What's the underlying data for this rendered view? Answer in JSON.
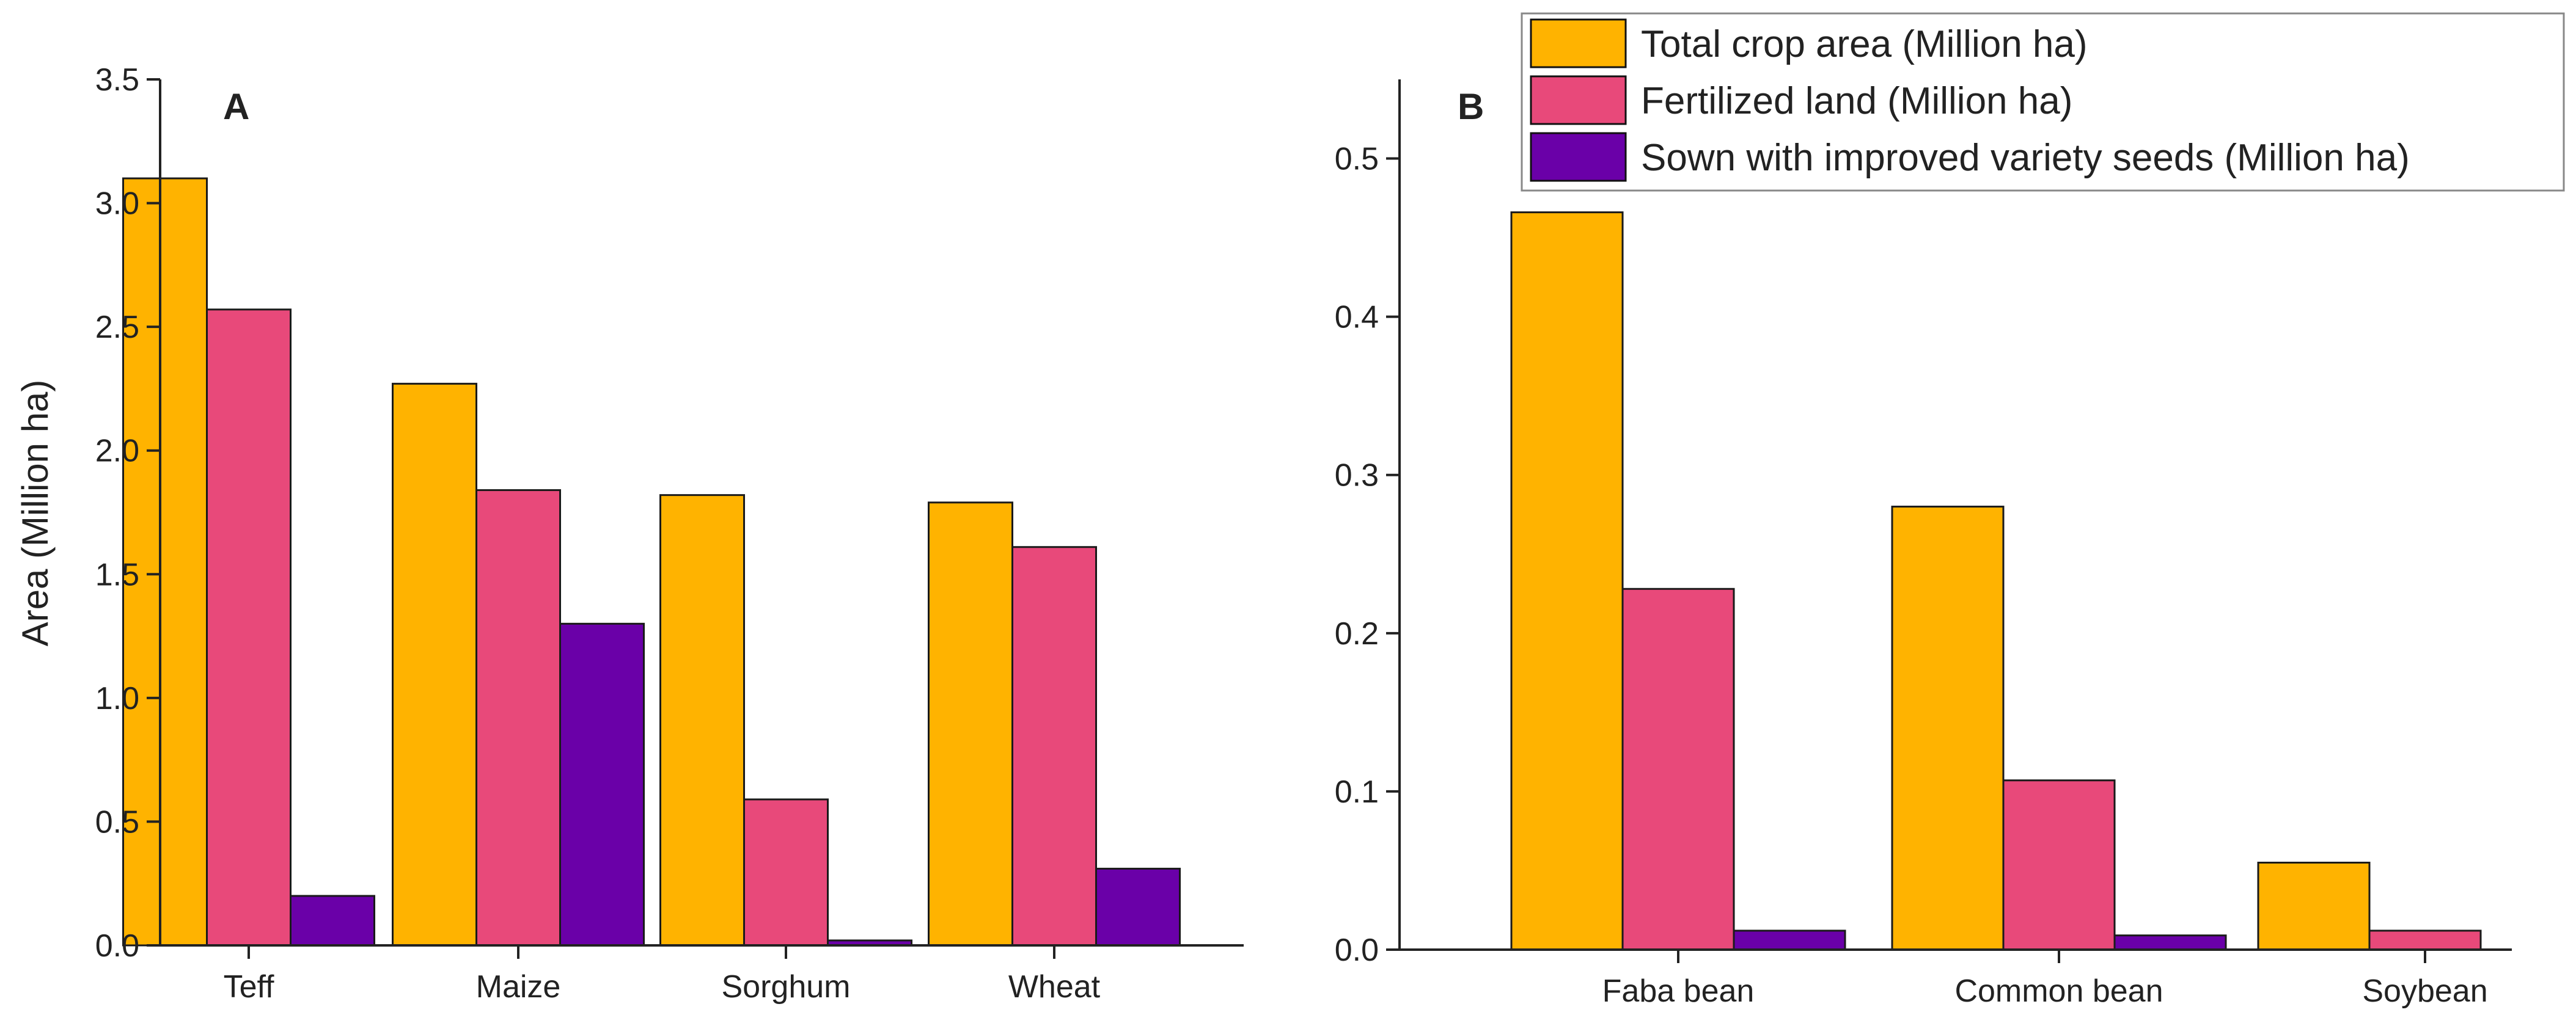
{
  "legend": {
    "items": [
      {
        "label": "Total crop area (Million ha)",
        "color": "#FFB300"
      },
      {
        "label": "Fertilized land (Million ha)",
        "color": "#E8497A"
      },
      {
        "label": "Sown with improved variety seeds (Million ha)",
        "color": "#6A00A8"
      }
    ],
    "placement": "top-right"
  },
  "chart_data": [
    {
      "type": "bar",
      "panel": "A",
      "ylabel": "Area (Million ha)",
      "categories": [
        "Teff",
        "Maize",
        "Sorghum",
        "Wheat"
      ],
      "ylim": [
        0,
        3.5
      ],
      "yticks": [
        "0.0",
        "0.5",
        "1.0",
        "1.5",
        "2.0",
        "2.5",
        "3.0",
        "3.5"
      ],
      "grid": false,
      "series": [
        {
          "name": "Total crop area (Million ha)",
          "color": "#FFB300",
          "values": [
            3.1,
            2.27,
            1.82,
            1.79
          ]
        },
        {
          "name": "Fertilized land (Million ha)",
          "color": "#E8497A",
          "values": [
            2.57,
            1.84,
            0.59,
            1.61
          ]
        },
        {
          "name": "Sown with improved variety seeds (Million ha)",
          "color": "#6A00A8",
          "values": [
            0.2,
            1.3,
            0.02,
            0.31
          ]
        }
      ]
    },
    {
      "type": "bar",
      "panel": "B",
      "ylabel": "",
      "categories": [
        "Faba bean",
        "Common bean",
        "Soybean"
      ],
      "ylim": [
        0,
        0.55
      ],
      "yticks": [
        "0.0",
        "0.1",
        "0.2",
        "0.3",
        "0.4",
        "0.5"
      ],
      "grid": false,
      "series": [
        {
          "name": "Total crop area (Million ha)",
          "color": "#FFB300",
          "values": [
            0.466,
            0.28,
            0.055
          ]
        },
        {
          "name": "Fertilized land (Million ha)",
          "color": "#E8497A",
          "values": [
            0.228,
            0.107,
            0.012
          ]
        },
        {
          "name": "Sown with improved variety seeds (Million ha)",
          "color": "#6A00A8",
          "values": [
            0.012,
            0.009,
            0
          ]
        }
      ]
    }
  ]
}
